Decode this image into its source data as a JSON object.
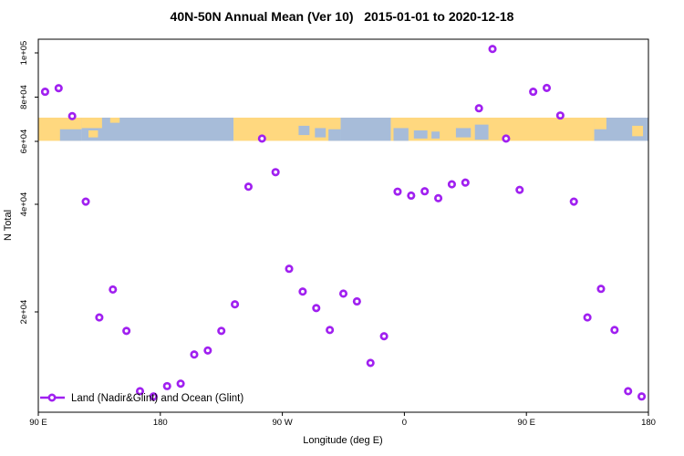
{
  "title": "40N-50N Annual Mean (Ver 10)   2015-01-01 to 2020-12-18",
  "colors": {
    "marker": "#A020F0",
    "land": "#FFD87F",
    "ocean": "#A7BCD9",
    "axis": "#000000"
  },
  "legend": {
    "label": "Land (Nadir&Glint) and Ocean (Glint)"
  },
  "chart_data": {
    "type": "scatter",
    "title": "40N-50N Annual Mean (Ver 10)   2015-01-01 to 2020-12-18",
    "xlabel": "Longitude (deg E)",
    "ylabel": "N Total",
    "legend_position": "bottom-left-inside",
    "grid": false,
    "x_axis": {
      "min": 90,
      "max": 540,
      "note": "longitude increases continuously eastward from 90E, wrapping past 180 and 0 back to 180",
      "ticks": [
        {
          "lon": 90,
          "label": "90 E"
        },
        {
          "lon": 180,
          "label": "180"
        },
        {
          "lon": 270,
          "label": "90 W"
        },
        {
          "lon": 360,
          "label": "0"
        },
        {
          "lon": 450,
          "label": "90 E"
        },
        {
          "lon": 540,
          "label": "180"
        }
      ]
    },
    "y_axis": {
      "scale": "log",
      "min": 10500,
      "max": 110000,
      "ticks": [
        {
          "value": 100000,
          "label": "1e+05"
        },
        {
          "value": 80000,
          "label": "8e+04"
        },
        {
          "value": 60000,
          "label": "6e+04"
        },
        {
          "value": 40000,
          "label": "4e+04"
        },
        {
          "value": 20000,
          "label": "2e+04"
        }
      ]
    },
    "series": [
      {
        "name": "Land (Nadir&Glint) and Ocean (Glint)",
        "marker": "open-circle",
        "color": "#A020F0",
        "points": [
          [
            95,
            82200
          ],
          [
            105,
            83700
          ],
          [
            115,
            70700
          ],
          [
            125,
            40700
          ],
          [
            135,
            19300
          ],
          [
            145,
            23100
          ],
          [
            155,
            17700
          ],
          [
            165,
            12000
          ],
          [
            175,
            11600
          ],
          [
            185,
            12400
          ],
          [
            195,
            12600
          ],
          [
            205,
            15200
          ],
          [
            215,
            15600
          ],
          [
            225,
            17700
          ],
          [
            235,
            21000
          ],
          [
            245,
            44800
          ],
          [
            255,
            61100
          ],
          [
            265,
            49200
          ],
          [
            275,
            26400
          ],
          [
            285,
            22800
          ],
          [
            295,
            20500
          ],
          [
            305,
            17800
          ],
          [
            315,
            22500
          ],
          [
            325,
            21400
          ],
          [
            335,
            14400
          ],
          [
            345,
            17100
          ],
          [
            355,
            43400
          ],
          [
            365,
            42300
          ],
          [
            375,
            43500
          ],
          [
            385,
            41600
          ],
          [
            395,
            45500
          ],
          [
            405,
            46000
          ],
          [
            415,
            74400
          ],
          [
            425,
            102000
          ],
          [
            435,
            61100
          ],
          [
            445,
            43900
          ],
          [
            455,
            82200
          ],
          [
            465,
            83800
          ],
          [
            475,
            71000
          ],
          [
            485,
            40700
          ],
          [
            495,
            19300
          ],
          [
            505,
            23200
          ],
          [
            515,
            17800
          ],
          [
            525,
            12000
          ],
          [
            535,
            11600
          ]
        ]
      }
    ],
    "map_band": {
      "description": "land/ocean strip for the 40N-50N latitude belt drawn across the plot",
      "value_range": [
        60200,
        70000
      ],
      "land_color": "#FFD87F",
      "ocean_color": "#A7BCD9",
      "segments": [
        {
          "from": 90,
          "to": 122,
          "type": "land"
        },
        {
          "from": 122,
          "to": 234,
          "type": "ocean"
        },
        {
          "from": 234,
          "to": 313,
          "type": "land"
        },
        {
          "from": 313,
          "to": 350,
          "type": "ocean"
        },
        {
          "from": 350,
          "to": 500,
          "type": "land"
        },
        {
          "from": 500,
          "to": 540,
          "type": "ocean"
        }
      ],
      "patches": [
        {
          "from": 106,
          "to": 122,
          "top": 0.5,
          "bottom": 1.0,
          "type": "ocean"
        },
        {
          "from": 122,
          "to": 137,
          "top": 0.0,
          "bottom": 0.45,
          "type": "land"
        },
        {
          "from": 127,
          "to": 134,
          "top": 0.55,
          "bottom": 0.85,
          "type": "land"
        },
        {
          "from": 143,
          "to": 150,
          "top": 0.0,
          "bottom": 0.22,
          "type": "land"
        },
        {
          "from": 282,
          "to": 290,
          "top": 0.35,
          "bottom": 0.75,
          "type": "ocean"
        },
        {
          "from": 294,
          "to": 302,
          "top": 0.45,
          "bottom": 0.85,
          "type": "ocean"
        },
        {
          "from": 304,
          "to": 313,
          "top": 0.5,
          "bottom": 1.0,
          "type": "ocean"
        },
        {
          "from": 352,
          "to": 363,
          "top": 0.45,
          "bottom": 1.0,
          "type": "ocean"
        },
        {
          "from": 367,
          "to": 377,
          "top": 0.55,
          "bottom": 0.9,
          "type": "ocean"
        },
        {
          "from": 380,
          "to": 386,
          "top": 0.6,
          "bottom": 0.9,
          "type": "ocean"
        },
        {
          "from": 398,
          "to": 409,
          "top": 0.45,
          "bottom": 0.85,
          "type": "ocean"
        },
        {
          "from": 412,
          "to": 422,
          "top": 0.3,
          "bottom": 0.95,
          "type": "ocean"
        },
        {
          "from": 500,
          "to": 509,
          "top": 0.0,
          "bottom": 0.5,
          "type": "land"
        },
        {
          "from": 528,
          "to": 536,
          "top": 0.35,
          "bottom": 0.8,
          "type": "land"
        }
      ]
    }
  }
}
